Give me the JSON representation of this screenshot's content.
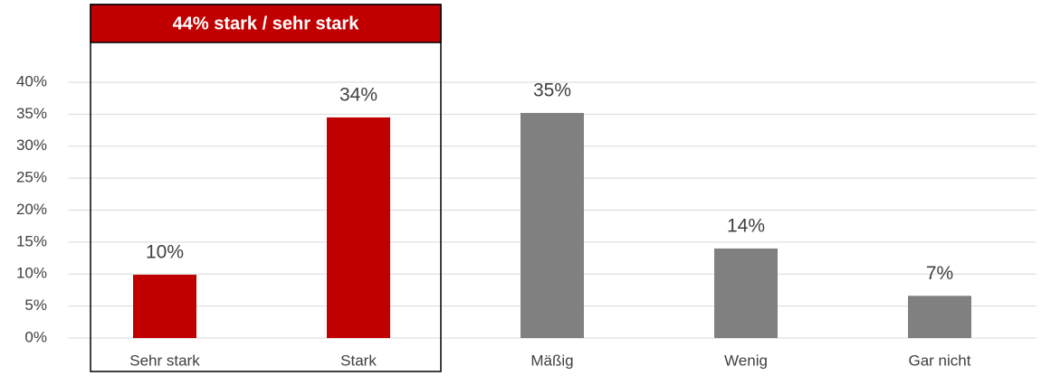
{
  "chart_data": {
    "type": "bar",
    "annotation": "44% stark / sehr stark",
    "categories": [
      "Sehr stark",
      "Stark",
      "Mäßig",
      "Wenig",
      "Gar nicht"
    ],
    "values": [
      9.9,
      34.5,
      35.2,
      14,
      6.6
    ],
    "value_labels": [
      "10%",
      "34%",
      "35%",
      "14%",
      "7%"
    ],
    "colors": [
      "#c00000",
      "#c00000",
      "#808080",
      "#808080",
      "#808080"
    ],
    "ylim": [
      0,
      40
    ],
    "yticks": [
      {
        "value": 0,
        "label": "0%"
      },
      {
        "value": 5,
        "label": "5%"
      },
      {
        "value": 10,
        "label": "10%"
      },
      {
        "value": 15,
        "label": "15%"
      },
      {
        "value": 20,
        "label": "20%"
      },
      {
        "value": 25,
        "label": "25%"
      },
      {
        "value": 30,
        "label": "30%"
      },
      {
        "value": 35,
        "label": "35%"
      },
      {
        "value": 40,
        "label": "40%"
      }
    ],
    "grid": true
  }
}
